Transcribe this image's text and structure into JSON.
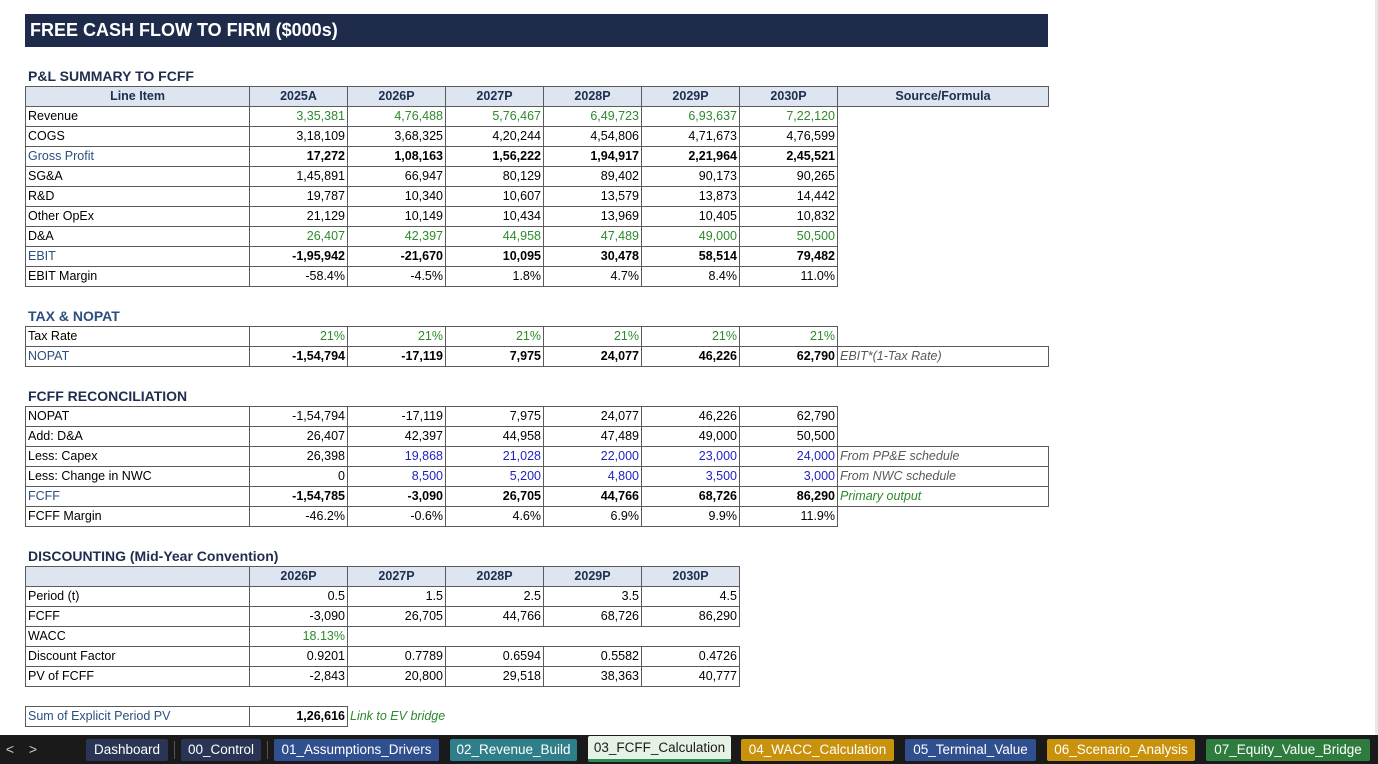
{
  "title": "FREE CASH FLOW TO FIRM ($000s)",
  "pl": {
    "section": "P&L SUMMARY TO FCFF",
    "headers": [
      "Line Item",
      "2025A",
      "2026P",
      "2027P",
      "2028P",
      "2029P",
      "2030P",
      "Source/Formula"
    ],
    "rows": [
      {
        "label": "Revenue",
        "vals": [
          "3,35,381",
          "4,76,488",
          "5,76,467",
          "6,49,723",
          "6,93,637",
          "7,22,120"
        ],
        "note": ""
      },
      {
        "label": "COGS",
        "vals": [
          "3,18,109",
          "3,68,325",
          "4,20,244",
          "4,54,806",
          "4,71,673",
          "4,76,599"
        ],
        "note": ""
      },
      {
        "label": "Gross Profit",
        "vals": [
          "17,272",
          "1,08,163",
          "1,56,222",
          "1,94,917",
          "2,21,964",
          "2,45,521"
        ],
        "note": ""
      },
      {
        "label": "SG&A",
        "vals": [
          "1,45,891",
          "66,947",
          "80,129",
          "89,402",
          "90,173",
          "90,265"
        ],
        "note": ""
      },
      {
        "label": "R&D",
        "vals": [
          "19,787",
          "10,340",
          "10,607",
          "13,579",
          "13,873",
          "14,442"
        ],
        "note": ""
      },
      {
        "label": "Other OpEx",
        "vals": [
          "21,129",
          "10,149",
          "10,434",
          "13,969",
          "10,405",
          "10,832"
        ],
        "note": ""
      },
      {
        "label": "D&A",
        "vals": [
          "26,407",
          "42,397",
          "44,958",
          "47,489",
          "49,000",
          "50,500"
        ],
        "note": ""
      },
      {
        "label": "EBIT",
        "vals": [
          "-1,95,942",
          "-21,670",
          "10,095",
          "30,478",
          "58,514",
          "79,482"
        ],
        "note": ""
      },
      {
        "label": "EBIT Margin",
        "vals": [
          "-58.4%",
          "-4.5%",
          "1.8%",
          "4.7%",
          "8.4%",
          "11.0%"
        ],
        "note": ""
      }
    ]
  },
  "tax": {
    "section": "TAX & NOPAT",
    "rows": [
      {
        "label": "Tax Rate",
        "vals": [
          "21%",
          "21%",
          "21%",
          "21%",
          "21%",
          "21%"
        ],
        "note": ""
      },
      {
        "label": "NOPAT",
        "vals": [
          "-1,54,794",
          "-17,119",
          "7,975",
          "24,077",
          "46,226",
          "62,790"
        ],
        "note": "EBIT*(1-Tax Rate)"
      }
    ]
  },
  "fcff": {
    "section": "FCFF RECONCILIATION",
    "rows": [
      {
        "label": "NOPAT",
        "vals": [
          "-1,54,794",
          "-17,119",
          "7,975",
          "24,077",
          "46,226",
          "62,790"
        ],
        "note": ""
      },
      {
        "label": "Add: D&A",
        "vals": [
          "26,407",
          "42,397",
          "44,958",
          "47,489",
          "49,000",
          "50,500"
        ],
        "note": ""
      },
      {
        "label": "Less: Capex",
        "vals": [
          "26,398",
          "19,868",
          "21,028",
          "22,000",
          "23,000",
          "24,000"
        ],
        "note": "From PP&E schedule"
      },
      {
        "label": "Less: Change in NWC",
        "vals": [
          "0",
          "8,500",
          "5,200",
          "4,800",
          "3,500",
          "3,000"
        ],
        "note": "From NWC schedule"
      },
      {
        "label": "FCFF",
        "vals": [
          "-1,54,785",
          "-3,090",
          "26,705",
          "44,766",
          "68,726",
          "86,290"
        ],
        "note": "Primary output"
      },
      {
        "label": "FCFF Margin",
        "vals": [
          "-46.2%",
          "-0.6%",
          "4.6%",
          "6.9%",
          "9.9%",
          "11.9%"
        ],
        "note": ""
      }
    ]
  },
  "disc": {
    "section": "DISCOUNTING (Mid-Year Convention)",
    "headers": [
      "",
      "2026P",
      "2027P",
      "2028P",
      "2029P",
      "2030P"
    ],
    "rows": [
      {
        "label": "Period (t)",
        "vals": [
          "0.5",
          "1.5",
          "2.5",
          "3.5",
          "4.5"
        ]
      },
      {
        "label": "FCFF",
        "vals": [
          "-3,090",
          "26,705",
          "44,766",
          "68,726",
          "86,290"
        ]
      },
      {
        "label": "WACC",
        "vals": [
          "18.13%",
          "",
          "",
          "",
          ""
        ]
      },
      {
        "label": "Discount Factor",
        "vals": [
          "0.9201",
          "0.7789",
          "0.6594",
          "0.5582",
          "0.4726"
        ]
      },
      {
        "label": "PV of FCFF",
        "vals": [
          "-2,843",
          "20,800",
          "29,518",
          "38,363",
          "40,777"
        ]
      }
    ]
  },
  "sum": {
    "label": "Sum of Explicit Period PV",
    "value": "1,26,616",
    "note": "Link to EV bridge"
  },
  "tabs": {
    "nav_prev": "<",
    "nav_next": ">",
    "items": [
      {
        "label": "Dashboard",
        "color": "#2a3555"
      },
      {
        "label": "00_Control",
        "color": "#2a3555"
      },
      {
        "label": "01_Assumptions_Drivers",
        "color": "#2f4f8f"
      },
      {
        "label": "02_Revenue_Build",
        "color": "#2f7f8a"
      },
      {
        "label": "03_FCFF_Calculation",
        "color": "#e6f2e6"
      },
      {
        "label": "04_WACC_Calculation",
        "color": "#c8920c"
      },
      {
        "label": "05_Terminal_Value",
        "color": "#2f4f8f"
      },
      {
        "label": "06_Scenario_Analysis",
        "color": "#c8920c"
      },
      {
        "label": "07_Equity_Value_Bridge",
        "color": "#2e7d3e"
      }
    ]
  }
}
